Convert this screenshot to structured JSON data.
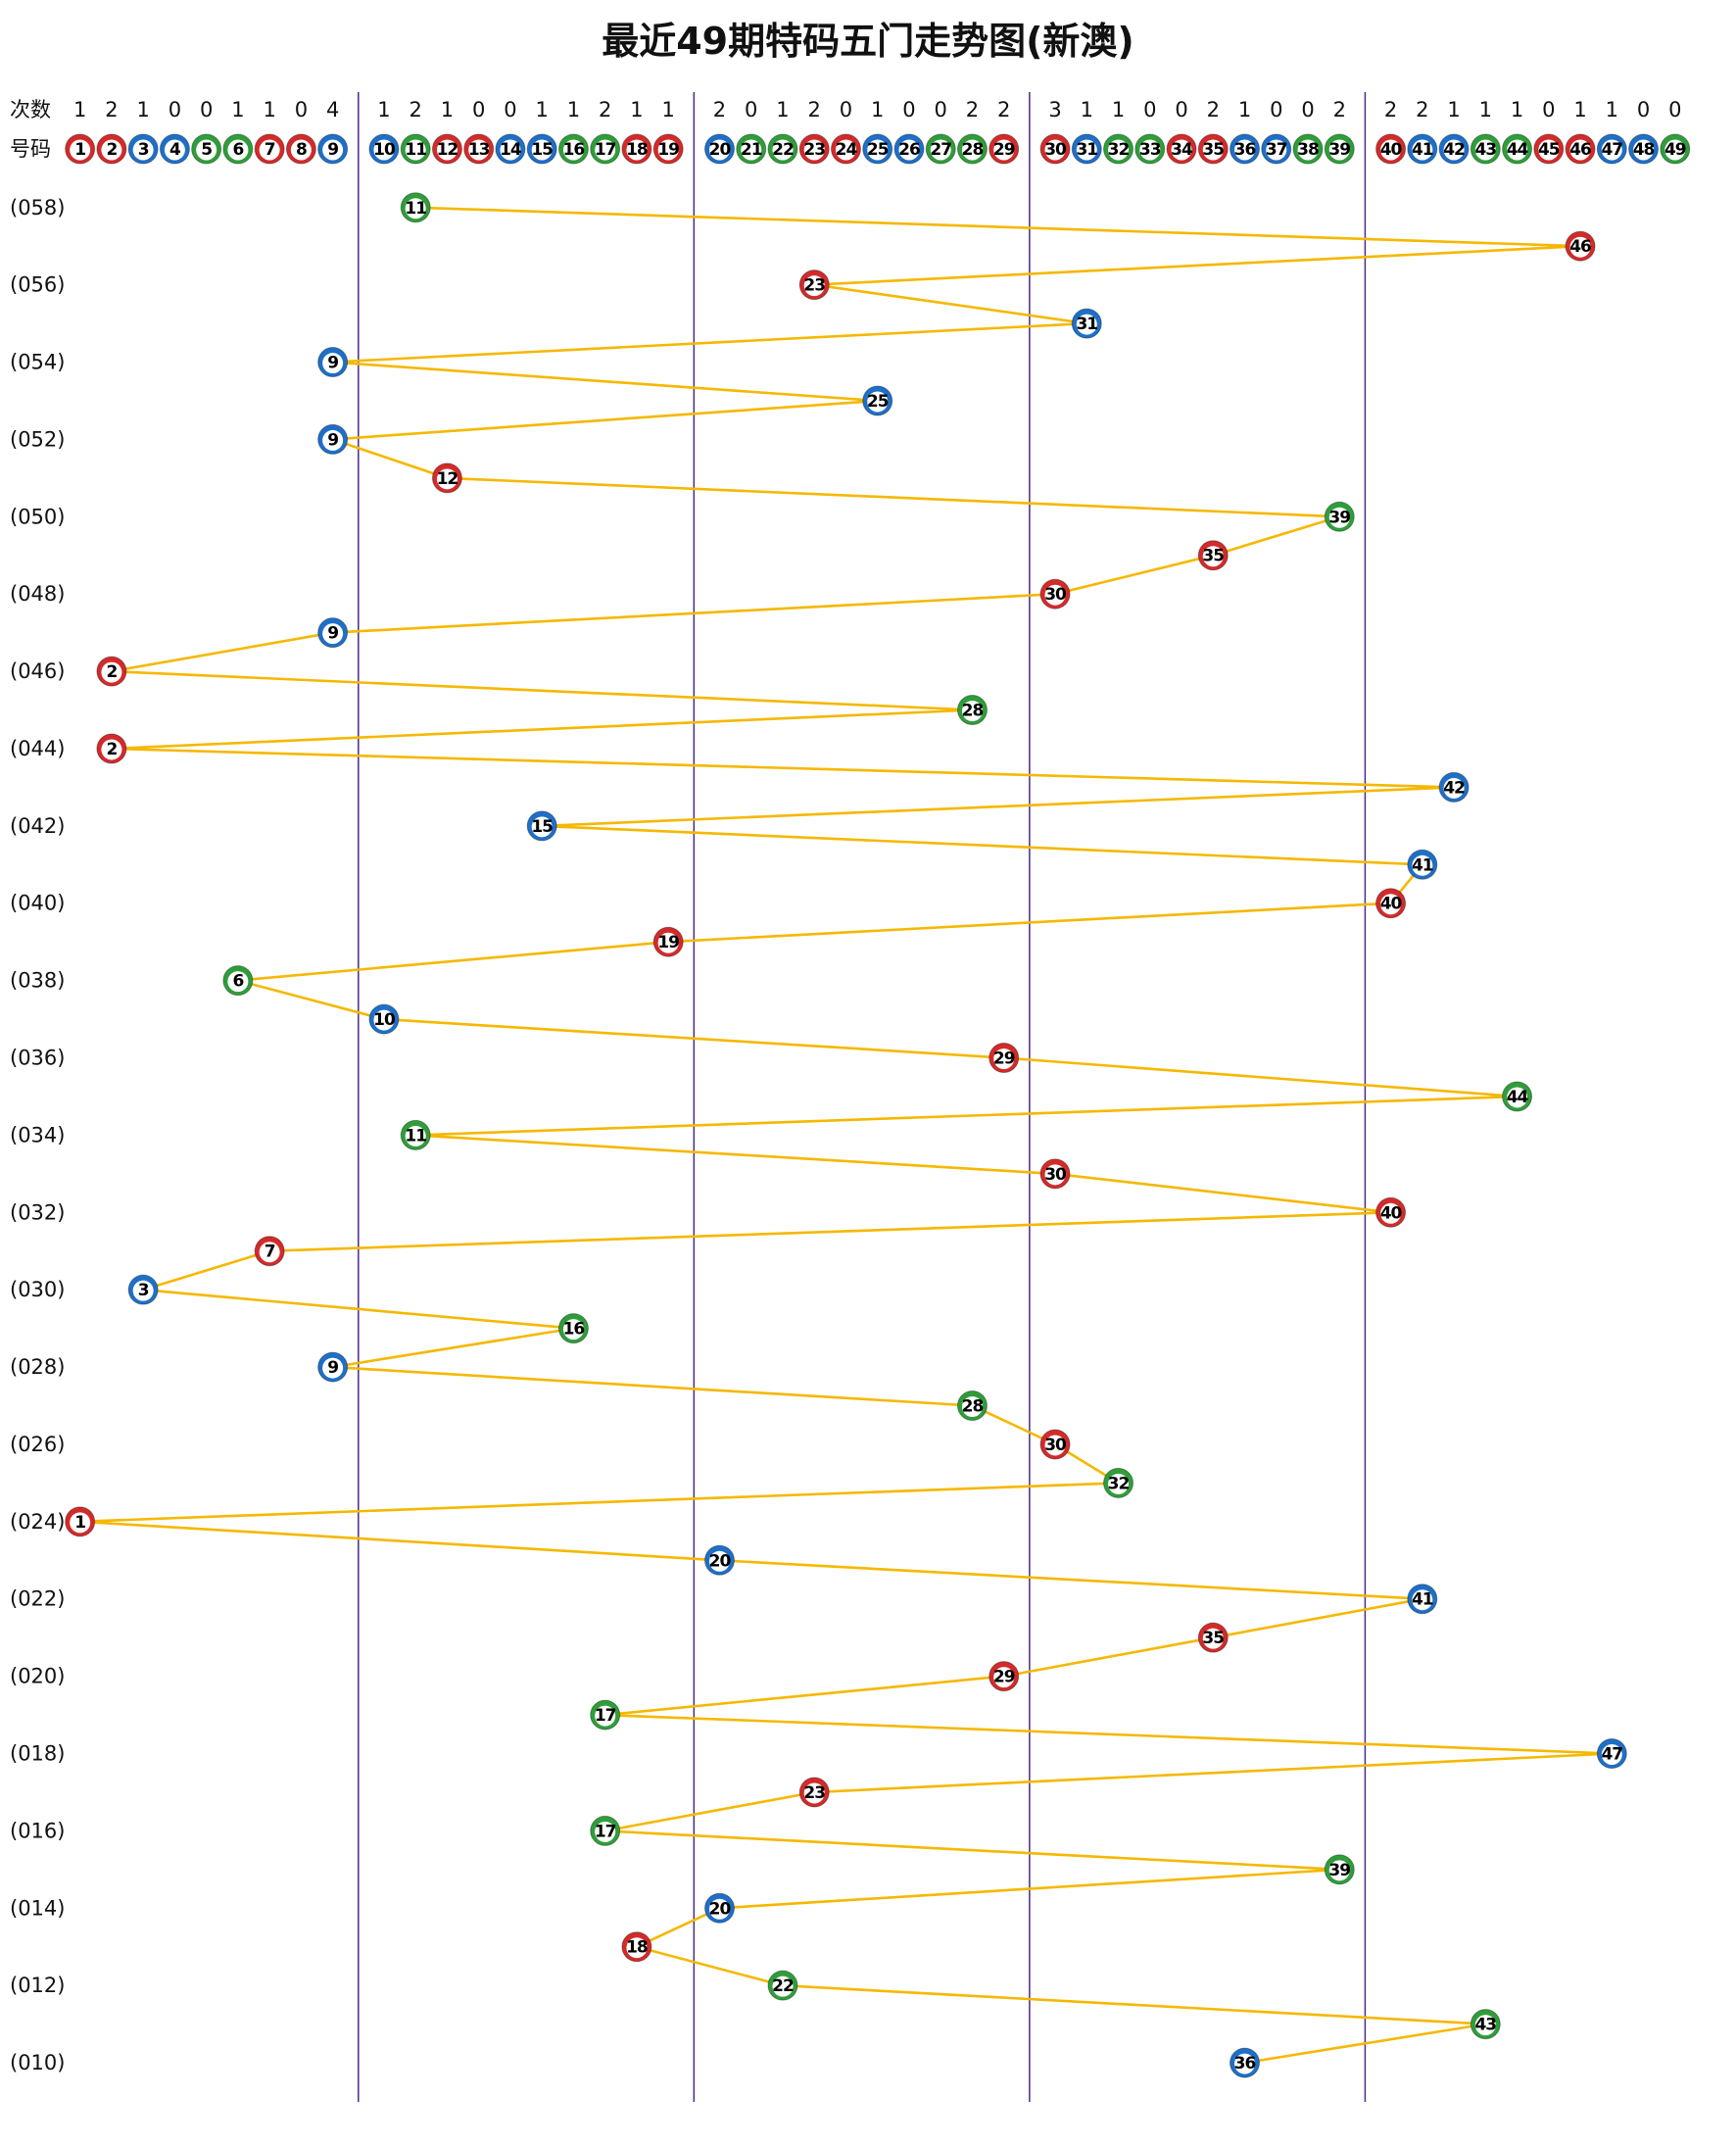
{
  "chart_data": {
    "type": "trend",
    "title": "最近49期特码五门走势图(新澳)",
    "count_label": "次数",
    "number_label": "号码",
    "numbers": [
      1,
      2,
      3,
      4,
      5,
      6,
      7,
      8,
      9,
      10,
      11,
      12,
      13,
      14,
      15,
      16,
      17,
      18,
      19,
      20,
      21,
      22,
      23,
      24,
      25,
      26,
      27,
      28,
      29,
      30,
      31,
      32,
      33,
      34,
      35,
      36,
      37,
      38,
      39,
      40,
      41,
      42,
      43,
      44,
      45,
      46,
      47,
      48,
      49
    ],
    "counts": [
      1,
      2,
      1,
      0,
      0,
      1,
      1,
      0,
      4,
      1,
      2,
      1,
      0,
      0,
      1,
      1,
      2,
      1,
      1,
      2,
      0,
      1,
      2,
      0,
      1,
      0,
      0,
      2,
      2,
      3,
      1,
      1,
      0,
      0,
      2,
      1,
      0,
      0,
      2,
      2,
      2,
      1,
      1,
      1,
      0,
      1,
      1,
      0,
      0
    ],
    "number_colors": [
      "#d42a2a",
      "#d42a2a",
      "#1e6fc8",
      "#1e6fc8",
      "#2f9e3a",
      "#2f9e3a",
      "#d42a2a",
      "#d42a2a",
      "#1e6fc8",
      "#1e6fc8",
      "#2f9e3a",
      "#d42a2a",
      "#d42a2a",
      "#1e6fc8",
      "#1e6fc8",
      "#2f9e3a",
      "#2f9e3a",
      "#d42a2a",
      "#d42a2a",
      "#1e6fc8",
      "#2f9e3a",
      "#2f9e3a",
      "#d42a2a",
      "#d42a2a",
      "#1e6fc8",
      "#1e6fc8",
      "#2f9e3a",
      "#2f9e3a",
      "#d42a2a",
      "#d42a2a",
      "#1e6fc8",
      "#2f9e3a",
      "#2f9e3a",
      "#d42a2a",
      "#d42a2a",
      "#1e6fc8",
      "#1e6fc8",
      "#2f9e3a",
      "#2f9e3a",
      "#d42a2a",
      "#1e6fc8",
      "#1e6fc8",
      "#2f9e3a",
      "#2f9e3a",
      "#d42a2a",
      "#d42a2a",
      "#1e6fc8",
      "#1e6fc8",
      "#2f9e3a"
    ],
    "periods": [
      "(058)",
      null,
      "(056)",
      null,
      "(054)",
      null,
      "(052)",
      null,
      "(050)",
      null,
      "(048)",
      null,
      "(046)",
      null,
      "(044)",
      null,
      "(042)",
      null,
      "(040)",
      null,
      "(038)",
      null,
      "(036)",
      null,
      "(034)",
      null,
      "(032)",
      null,
      "(030)",
      null,
      "(028)",
      null,
      "(026)",
      null,
      "(024)",
      null,
      "(022)",
      null,
      "(020)",
      null,
      "(018)",
      null,
      "(016)",
      null,
      "(014)",
      null,
      "(012)",
      null,
      "(010)"
    ],
    "values": [
      11,
      46,
      23,
      31,
      9,
      25,
      9,
      12,
      39,
      35,
      30,
      9,
      2,
      28,
      2,
      42,
      15,
      41,
      40,
      19,
      6,
      10,
      29,
      44,
      11,
      30,
      40,
      7,
      3,
      16,
      9,
      28,
      30,
      32,
      1,
      20,
      41,
      35,
      29,
      17,
      47,
      23,
      17,
      39,
      20,
      18,
      22,
      43,
      36
    ],
    "line_color": "#f5b800"
  }
}
